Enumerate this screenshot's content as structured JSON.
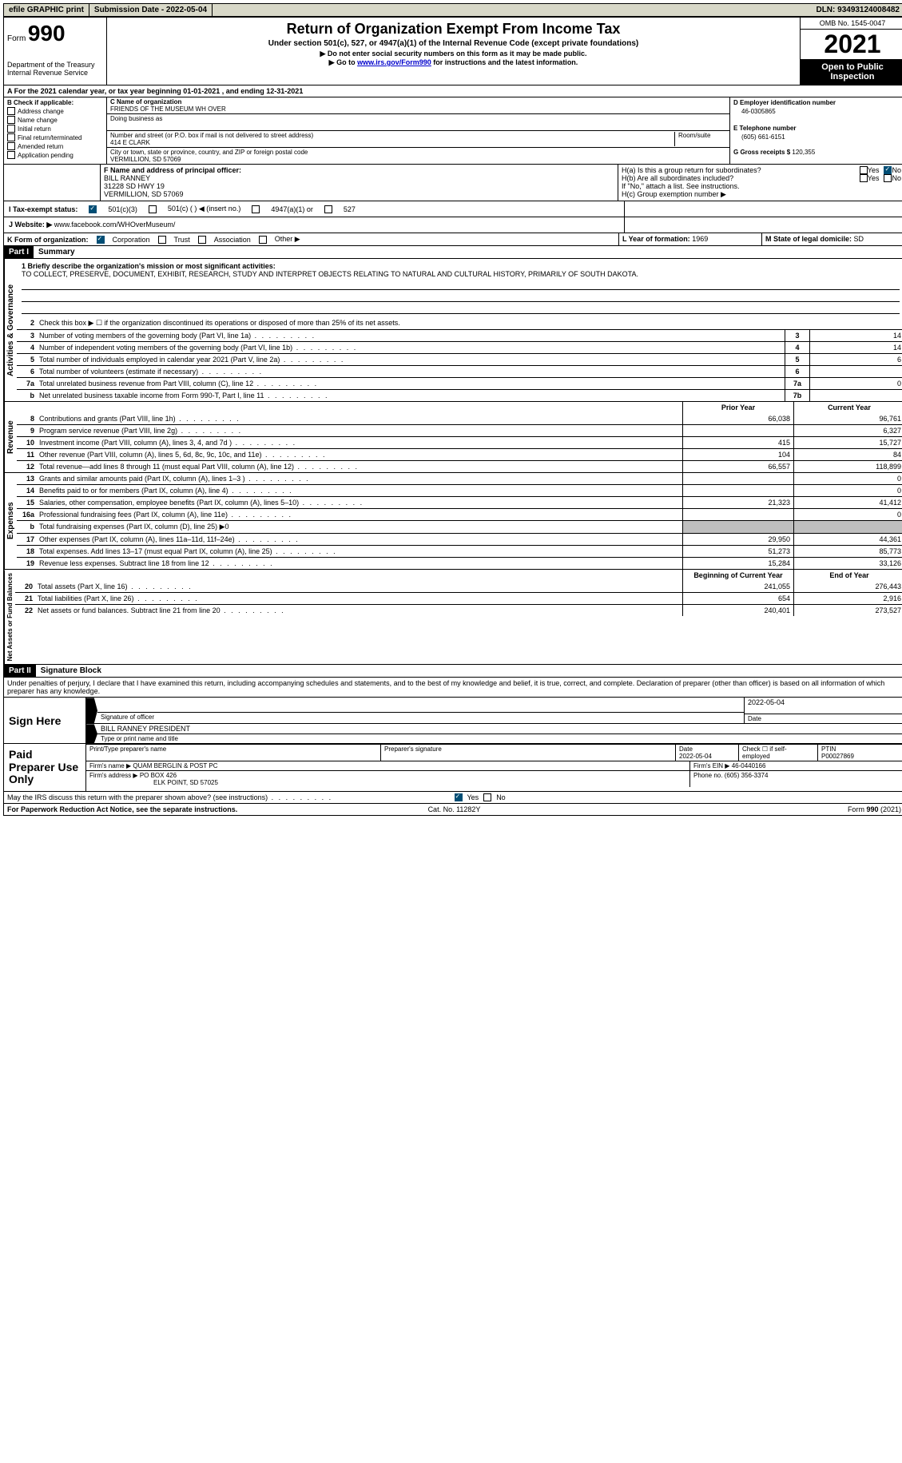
{
  "top_bar": {
    "efile": "efile GRAPHIC print",
    "submission": "Submission Date - 2022-05-04",
    "dln": "DLN: 93493124008482"
  },
  "header": {
    "form_label": "Form",
    "form_num": "990",
    "title": "Return of Organization Exempt From Income Tax",
    "sub1": "Under section 501(c), 527, or 4947(a)(1) of the Internal Revenue Code (except private foundations)",
    "sub2": "▶ Do not enter social security numbers on this form as it may be made public.",
    "sub3_prefix": "▶ Go to ",
    "sub3_link": "www.irs.gov/Form990",
    "sub3_suffix": " for instructions and the latest information.",
    "dept": "Department of the Treasury",
    "irs": "Internal Revenue Service",
    "omb": "OMB No. 1545-0047",
    "year": "2021",
    "open": "Open to Public Inspection"
  },
  "line_a": "A For the 2021 calendar year, or tax year beginning 01-01-2021    , and ending 12-31-2021",
  "box_b": {
    "label": "B Check if applicable:",
    "opts": [
      "Address change",
      "Name change",
      "Initial return",
      "Final return/terminated",
      "Amended return",
      "Application pending"
    ]
  },
  "box_c": {
    "name_label": "C Name of organization",
    "name": "FRIENDS OF THE MUSEUM WH OVER",
    "dba_label": "Doing business as",
    "dba": "",
    "street_label": "Number and street (or P.O. box if mail is not delivered to street address)",
    "room_label": "Room/suite",
    "street": "414 E CLARK",
    "city_label": "City or town, state or province, country, and ZIP or foreign postal code",
    "city": "VERMILLION, SD  57069"
  },
  "box_d": {
    "label": "D Employer identification number",
    "val": "46-0305865"
  },
  "box_e": {
    "label": "E Telephone number",
    "val": "(605) 661-6151"
  },
  "box_g": {
    "label": "G Gross receipts $",
    "val": "120,355"
  },
  "box_f": {
    "label": "F  Name and address of principal officer:",
    "name": "BILL RANNEY",
    "addr1": "31228 SD HWY 19",
    "addr2": "VERMILLION, SD  57069"
  },
  "box_h": {
    "ha": "H(a)  Is this a group return for subordinates?",
    "hb": "H(b)  Are all subordinates included?",
    "hb_note": "If \"No,\" attach a list. See instructions.",
    "hc": "H(c)  Group exemption number ▶",
    "yes": "Yes",
    "no": "No"
  },
  "box_i": {
    "label": "I   Tax-exempt status:",
    "o1": "501(c)(3)",
    "o2": "501(c) (  ) ◀ (insert no.)",
    "o3": "4947(a)(1) or",
    "o4": "527"
  },
  "box_j": {
    "label": "J   Website: ▶",
    "val": "www.facebook.com/WHOverMuseum/"
  },
  "box_k": {
    "label": "K Form of organization:",
    "o1": "Corporation",
    "o2": "Trust",
    "o3": "Association",
    "o4": "Other ▶"
  },
  "box_l": {
    "label": "L Year of formation:",
    "val": "1969"
  },
  "box_m": {
    "label": "M State of legal domicile:",
    "val": "SD"
  },
  "part1": {
    "num": "Part I",
    "title": "Summary"
  },
  "mission_label": "1   Briefly describe the organization's mission or most significant activities:",
  "mission": "TO COLLECT, PRESERVE, DOCUMENT, EXHIBIT, RESEARCH, STUDY AND INTERPRET OBJECTS RELATING TO NATURAL AND CULTURAL HISTORY, PRIMARILY OF SOUTH DAKOTA.",
  "section_labels": {
    "activities": "Activities & Governance",
    "revenue": "Revenue",
    "expenses": "Expenses",
    "net": "Net Assets or Fund Balances"
  },
  "lines_top": [
    {
      "n": "2",
      "d": "Check this box ▶ ☐  if the organization discontinued its operations or disposed of more than 25% of its net assets."
    },
    {
      "n": "3",
      "d": "Number of voting members of the governing body (Part VI, line 1a)",
      "box": "3",
      "v": "14"
    },
    {
      "n": "4",
      "d": "Number of independent voting members of the governing body (Part VI, line 1b)",
      "box": "4",
      "v": "14"
    },
    {
      "n": "5",
      "d": "Total number of individuals employed in calendar year 2021 (Part V, line 2a)",
      "box": "5",
      "v": "6"
    },
    {
      "n": "6",
      "d": "Total number of volunteers (estimate if necessary)",
      "box": "6",
      "v": ""
    },
    {
      "n": "7a",
      "d": "Total unrelated business revenue from Part VIII, column (C), line 12",
      "box": "7a",
      "v": "0"
    },
    {
      "n": "b",
      "d": "Net unrelated business taxable income from Form 990-T, Part I, line 11",
      "box": "7b",
      "v": ""
    }
  ],
  "col_headers": {
    "prior": "Prior Year",
    "curr": "Current Year",
    "beg": "Beginning of Current Year",
    "end": "End of Year"
  },
  "lines_rev": [
    {
      "n": "8",
      "d": "Contributions and grants (Part VIII, line 1h)",
      "p": "66,038",
      "c": "96,761"
    },
    {
      "n": "9",
      "d": "Program service revenue (Part VIII, line 2g)",
      "p": "",
      "c": "6,327"
    },
    {
      "n": "10",
      "d": "Investment income (Part VIII, column (A), lines 3, 4, and 7d )",
      "p": "415",
      "c": "15,727"
    },
    {
      "n": "11",
      "d": "Other revenue (Part VIII, column (A), lines 5, 6d, 8c, 9c, 10c, and 11e)",
      "p": "104",
      "c": "84"
    },
    {
      "n": "12",
      "d": "Total revenue—add lines 8 through 11 (must equal Part VIII, column (A), line 12)",
      "p": "66,557",
      "c": "118,899"
    }
  ],
  "lines_exp": [
    {
      "n": "13",
      "d": "Grants and similar amounts paid (Part IX, column (A), lines 1–3 )",
      "p": "",
      "c": "0"
    },
    {
      "n": "14",
      "d": "Benefits paid to or for members (Part IX, column (A), line 4)",
      "p": "",
      "c": "0"
    },
    {
      "n": "15",
      "d": "Salaries, other compensation, employee benefits (Part IX, column (A), lines 5–10)",
      "p": "21,323",
      "c": "41,412"
    },
    {
      "n": "16a",
      "d": "Professional fundraising fees (Part IX, column (A), line 11e)",
      "p": "",
      "c": "0"
    },
    {
      "n": "b",
      "d": "Total fundraising expenses (Part IX, column (D), line 25) ▶0",
      "gray": true
    },
    {
      "n": "17",
      "d": "Other expenses (Part IX, column (A), lines 11a–11d, 11f–24e)",
      "p": "29,950",
      "c": "44,361"
    },
    {
      "n": "18",
      "d": "Total expenses. Add lines 13–17 (must equal Part IX, column (A), line 25)",
      "p": "51,273",
      "c": "85,773"
    },
    {
      "n": "19",
      "d": "Revenue less expenses. Subtract line 18 from line 12",
      "p": "15,284",
      "c": "33,126"
    }
  ],
  "lines_net": [
    {
      "n": "20",
      "d": "Total assets (Part X, line 16)",
      "p": "241,055",
      "c": "276,443"
    },
    {
      "n": "21",
      "d": "Total liabilities (Part X, line 26)",
      "p": "654",
      "c": "2,916"
    },
    {
      "n": "22",
      "d": "Net assets or fund balances. Subtract line 21 from line 20",
      "p": "240,401",
      "c": "273,527"
    }
  ],
  "part2": {
    "num": "Part II",
    "title": "Signature Block"
  },
  "penalties": "Under penalties of perjury, I declare that I have examined this return, including accompanying schedules and statements, and to the best of my knowledge and belief, it is true, correct, and complete. Declaration of preparer (other than officer) is based on all information of which preparer has any knowledge.",
  "sign": {
    "here": "Sign Here",
    "sig_label": "Signature of officer",
    "date": "2022-05-04",
    "date_label": "Date",
    "name": "BILL RANNEY  PRESIDENT",
    "name_label": "Type or print name and title"
  },
  "paid": {
    "label": "Paid Preparer Use Only",
    "h1": "Print/Type preparer's name",
    "h2": "Preparer's signature",
    "h3_label": "Date",
    "h3": "2022-05-04",
    "h4_label": "Check ☐ if self-employed",
    "h5_label": "PTIN",
    "h5": "P00027869",
    "firm_label": "Firm's name    ▶",
    "firm": "QUAM BERGLIN & POST PC",
    "ein_label": "Firm's EIN ▶",
    "ein": "46-0440166",
    "addr_label": "Firm's address ▶",
    "addr1": "PO BOX 426",
    "addr2": "ELK POINT, SD  57025",
    "phone_label": "Phone no.",
    "phone": "(605) 356-3374"
  },
  "discuss": {
    "text": "May the IRS discuss this return with the preparer shown above? (see instructions)",
    "yes": "Yes",
    "no": "No"
  },
  "footer": {
    "left": "For Paperwork Reduction Act Notice, see the separate instructions.",
    "center": "Cat. No. 11282Y",
    "right": "Form 990 (2021)"
  }
}
